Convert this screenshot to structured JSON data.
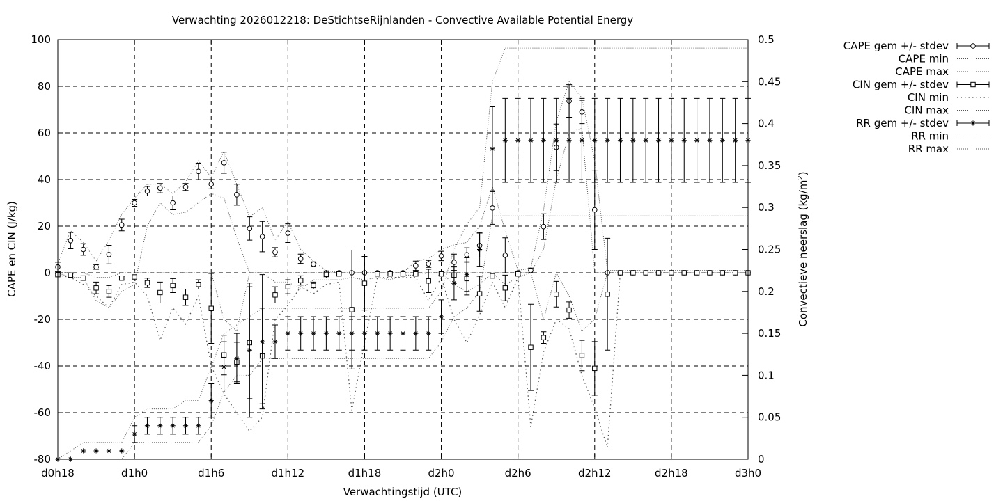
{
  "chart_data": {
    "type": "line",
    "title": "Verwachting 2026012218: DeStichtseRijnlanden - Convective Available Potential Energy",
    "xlabel": "Verwachtingstijd (UTC)",
    "ylabel": "CAPE en CIN (J/kg)",
    "y2label_main": "Convectieve neerslag (kg/m",
    "y2label_sup": "2",
    "y2label_end": ")",
    "xlim": [
      0,
      54
    ],
    "ylim": [
      -80,
      100
    ],
    "y2lim": [
      0,
      0.5
    ],
    "grid": true,
    "legend_position": "top-right outside",
    "x_ticks": [
      {
        "value": 0,
        "label": "d0h18"
      },
      {
        "value": 6,
        "label": "d1h0"
      },
      {
        "value": 12,
        "label": "d1h6"
      },
      {
        "value": 18,
        "label": "d1h12"
      },
      {
        "value": 24,
        "label": "d1h18"
      },
      {
        "value": 30,
        "label": "d2h0"
      },
      {
        "value": 36,
        "label": "d2h6"
      },
      {
        "value": 42,
        "label": "d2h12"
      },
      {
        "value": 48,
        "label": "d2h18"
      },
      {
        "value": 54,
        "label": "d3h0"
      }
    ],
    "y_ticks": [
      {
        "value": 100,
        "label": "100"
      },
      {
        "value": 80,
        "label": "80"
      },
      {
        "value": 60,
        "label": "60"
      },
      {
        "value": 40,
        "label": "40"
      },
      {
        "value": 20,
        "label": "20"
      },
      {
        "value": 0,
        "label": "0"
      },
      {
        "value": -20,
        "label": "-20"
      },
      {
        "value": -40,
        "label": "-40"
      },
      {
        "value": -60,
        "label": "-60"
      },
      {
        "value": -80,
        "label": "-80"
      }
    ],
    "y2_ticks": [
      {
        "value": 0.5,
        "label": "0.5"
      },
      {
        "value": 0.45,
        "label": "0.45"
      },
      {
        "value": 0.4,
        "label": "0.4"
      },
      {
        "value": 0.35,
        "label": "0.35"
      },
      {
        "value": 0.3,
        "label": "0.3"
      },
      {
        "value": 0.25,
        "label": "0.25"
      },
      {
        "value": 0.2,
        "label": "0.2"
      },
      {
        "value": 0.15,
        "label": "0.15"
      },
      {
        "value": 0.1,
        "label": "0.1"
      },
      {
        "value": 0.05,
        "label": "0.05"
      },
      {
        "value": 0,
        "label": "0"
      }
    ],
    "x": [
      0,
      1,
      2,
      3,
      4,
      5,
      6,
      7,
      8,
      9,
      10,
      11,
      12,
      13,
      14,
      15,
      16,
      17,
      18,
      19,
      20,
      21,
      22,
      23,
      24,
      25,
      26,
      27,
      28,
      29,
      30,
      31,
      32,
      33,
      34,
      35,
      36,
      37,
      38,
      39,
      40,
      41,
      42,
      43,
      44,
      45,
      46,
      47,
      48,
      49,
      50,
      51,
      52,
      53,
      54
    ],
    "series": [
      {
        "name": "CAPE gem +/- stdev",
        "axis": "y1",
        "marker": "circle",
        "mean": [
          2.5,
          13.8,
          10.0,
          2.5,
          7.8,
          20.5,
          30.0,
          35.0,
          36.3,
          30.0,
          36.8,
          43.5,
          38.0,
          47.2,
          33.5,
          19.0,
          15.5,
          8.8,
          17.0,
          6.0,
          3.7,
          0,
          0,
          0,
          0,
          0,
          0,
          0,
          3.0,
          3.8,
          7.2,
          4.5,
          7.7,
          11.7,
          27.8,
          7.5,
          0,
          1.0,
          19.8,
          53.8,
          73.7,
          69.0,
          27.0,
          0,
          0,
          0,
          0,
          0,
          0,
          0,
          0,
          0,
          0,
          0,
          0
        ],
        "stdev": [
          2.0,
          3.5,
          2.5,
          1.0,
          4.0,
          2.5,
          1.5,
          2.0,
          2.0,
          3.0,
          1.5,
          3.5,
          2.0,
          4.5,
          4.5,
          5.0,
          6.5,
          2.0,
          4.0,
          2.0,
          1.0,
          0,
          0,
          0,
          0,
          0,
          0,
          0,
          2.0,
          1.5,
          2.0,
          3.5,
          3.0,
          5.0,
          7.0,
          7.5,
          0,
          1.0,
          5.5,
          10.0,
          7.0,
          5.0,
          17.0,
          0,
          0,
          0,
          0,
          0,
          0,
          0,
          0,
          0,
          0,
          0,
          0
        ]
      },
      {
        "name": "CAPE min",
        "axis": "y1",
        "values": [
          0,
          -2,
          -2,
          -12,
          -15,
          -8,
          -5,
          20,
          30,
          25,
          26,
          30,
          34,
          32,
          15,
          0,
          0,
          -4,
          -4,
          -7,
          -3,
          -3,
          -3,
          -2,
          -3,
          -2,
          -3,
          -1,
          -1,
          0,
          0,
          -5,
          -8,
          -5,
          0,
          -5,
          -2,
          0,
          10,
          40,
          60,
          62,
          0,
          0,
          0,
          0,
          0,
          0,
          0,
          0,
          0,
          0,
          0,
          0,
          0
        ]
      },
      {
        "name": "CAPE max",
        "axis": "y1",
        "values": [
          4,
          18,
          13,
          5,
          14,
          25,
          32,
          38,
          38,
          34,
          39,
          48,
          41,
          52,
          38,
          24,
          28,
          14,
          22,
          10,
          5,
          1,
          0,
          0,
          0,
          0,
          0,
          0,
          5,
          6,
          10,
          12,
          13,
          20,
          37,
          18,
          1,
          2,
          27,
          65,
          82,
          75,
          48,
          1,
          1,
          1,
          1,
          1,
          1,
          1,
          1,
          1,
          1,
          1,
          1
        ]
      },
      {
        "name": "CIN gem +/- stdev",
        "axis": "y1",
        "marker": "square",
        "mean": [
          -0.8,
          -1.0,
          -2.3,
          -6.5,
          -8.0,
          -2.3,
          -1.8,
          -4.3,
          -8.5,
          -5.5,
          -10.5,
          -5.0,
          -15.3,
          -35.3,
          -38.3,
          -30.0,
          -35.7,
          -9.5,
          -6.0,
          -3.3,
          -5.5,
          -0.7,
          -0.5,
          -15.8,
          -4.5,
          -0.5,
          -0.5,
          -0.5,
          -0.5,
          -3.5,
          -0.5,
          -1.0,
          -2.5,
          -9.0,
          -1.3,
          -6.5,
          -0.5,
          -32.0,
          -27.8,
          -9.2,
          -16.0,
          -35.5,
          -41.0,
          -9.2,
          0,
          0,
          0,
          0,
          0,
          0,
          0,
          0,
          0,
          0,
          0
        ],
        "stdev": [
          0.5,
          0.5,
          1.0,
          2.5,
          2.5,
          0.8,
          0.5,
          2.0,
          4.5,
          3.0,
          3.5,
          2.0,
          15.0,
          8.5,
          8.5,
          24.0,
          20.5,
          3.5,
          3.0,
          2.0,
          1.5,
          1.5,
          0,
          25.5,
          11.5,
          0,
          0,
          0,
          0,
          5.0,
          0.5,
          3.5,
          7.0,
          7.5,
          1.0,
          5.5,
          0.5,
          18.5,
          2.5,
          5.5,
          3.5,
          6.5,
          11.5,
          24.0,
          0,
          0,
          0,
          0,
          0,
          0,
          0,
          0,
          0,
          0,
          0
        ]
      },
      {
        "name": "CIN min",
        "axis": "y1",
        "values": [
          -1,
          -2,
          -5,
          -10,
          -15,
          -5,
          -4,
          -10,
          -29,
          -15,
          -22,
          -10,
          -40,
          -52,
          -60,
          -68,
          -62,
          -20,
          -14,
          -6,
          -9,
          -5,
          -4,
          -59,
          -30,
          -2,
          -2,
          -2,
          -2,
          -12,
          -2,
          -20,
          -30,
          -18,
          -4,
          -15,
          -2,
          -66,
          -34,
          -20,
          -24,
          -44,
          -58,
          -75,
          0,
          0,
          0,
          0,
          0,
          0,
          0,
          0,
          0,
          0,
          0
        ]
      },
      {
        "name": "CIN max",
        "axis": "y1",
        "values": [
          0,
          0,
          0,
          -2,
          -2,
          0,
          0,
          0,
          0,
          0,
          0,
          0,
          0,
          -20,
          -25,
          0,
          0,
          0,
          0,
          0,
          0,
          0,
          0,
          0,
          0,
          0,
          0,
          0,
          0,
          0,
          0,
          0,
          0,
          0,
          0,
          0,
          0,
          0,
          -20,
          0,
          -10,
          -25,
          -20,
          0,
          0,
          0,
          0,
          0,
          0,
          0,
          0,
          0,
          0,
          0,
          0
        ]
      },
      {
        "name": "RR gem +/- stdev",
        "axis": "y2",
        "marker": "star",
        "mean": [
          0,
          0,
          0.01,
          0.01,
          0.01,
          0.01,
          0.03,
          0.04,
          0.04,
          0.04,
          0.04,
          0.04,
          0.07,
          0.11,
          0.12,
          0.13,
          0.14,
          0.14,
          0.15,
          0.15,
          0.15,
          0.15,
          0.15,
          0.15,
          0.15,
          0.15,
          0.15,
          0.15,
          0.15,
          0.15,
          0.17,
          0.21,
          0.22,
          0.25,
          0.37,
          0.38,
          0.38,
          0.38,
          0.38,
          0.38,
          0.38,
          0.38,
          0.38,
          0.38,
          0.38,
          0.38,
          0.38,
          0.38,
          0.38,
          0.38,
          0.38,
          0.38,
          0.38,
          0.38,
          0.38
        ],
        "stdev": [
          0,
          0,
          0,
          0,
          0,
          0,
          0.01,
          0.01,
          0.01,
          0.01,
          0.01,
          0.01,
          0.02,
          0.03,
          0.03,
          0.08,
          0.08,
          0.02,
          0.02,
          0.02,
          0.02,
          0.02,
          0.02,
          0.02,
          0.02,
          0.02,
          0.02,
          0.02,
          0.02,
          0.02,
          0.02,
          0.02,
          0.02,
          0.02,
          0.05,
          0.05,
          0.05,
          0.05,
          0.05,
          0.05,
          0.05,
          0.05,
          0.05,
          0.05,
          0.05,
          0.05,
          0.05,
          0.05,
          0.05,
          0.05,
          0.05,
          0.05,
          0.05,
          0.05,
          0.05
        ]
      },
      {
        "name": "RR min",
        "axis": "y2",
        "values": [
          0,
          0,
          0,
          0,
          0,
          0,
          0.02,
          0.02,
          0.02,
          0.02,
          0.02,
          0.02,
          0.04,
          0.08,
          0.1,
          0.1,
          0.12,
          0.12,
          0.12,
          0.12,
          0.12,
          0.12,
          0.12,
          0.12,
          0.12,
          0.12,
          0.12,
          0.12,
          0.12,
          0.12,
          0.14,
          0.17,
          0.18,
          0.2,
          0.29,
          0.29,
          0.29,
          0.29,
          0.29,
          0.29,
          0.29,
          0.29,
          0.29,
          0.29,
          0.29,
          0.29,
          0.29,
          0.29,
          0.29,
          0.29,
          0.29,
          0.29,
          0.29,
          0.29,
          0.29
        ]
      },
      {
        "name": "RR max",
        "axis": "y2",
        "values": [
          0,
          0.01,
          0.02,
          0.02,
          0.02,
          0.02,
          0.05,
          0.06,
          0.06,
          0.06,
          0.07,
          0.07,
          0.11,
          0.15,
          0.16,
          0.17,
          0.18,
          0.18,
          0.18,
          0.18,
          0.18,
          0.18,
          0.18,
          0.18,
          0.18,
          0.18,
          0.18,
          0.18,
          0.18,
          0.18,
          0.2,
          0.25,
          0.28,
          0.3,
          0.45,
          0.49,
          0.49,
          0.49,
          0.49,
          0.49,
          0.49,
          0.49,
          0.49,
          0.49,
          0.49,
          0.49,
          0.49,
          0.49,
          0.49,
          0.49,
          0.49,
          0.49,
          0.49,
          0.49,
          0.49
        ]
      }
    ]
  }
}
